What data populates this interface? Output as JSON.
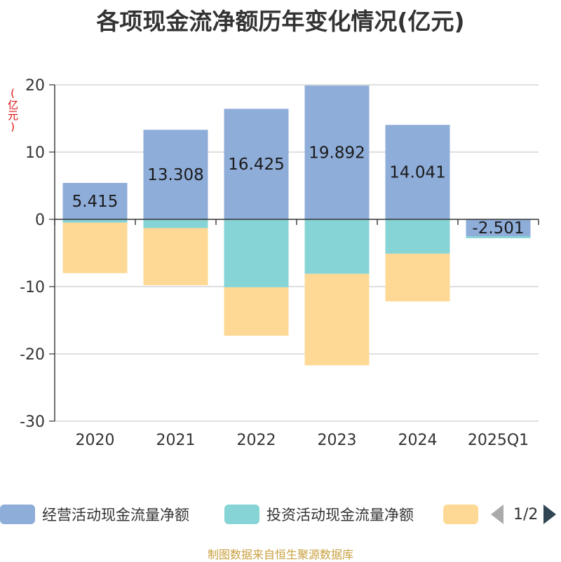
{
  "chart_data": {
    "type": "bar",
    "stacked": true,
    "title": "各项现金流净额历年变化情况(亿元)",
    "ylabel": "(亿元)",
    "ylim": [
      -30,
      20
    ],
    "yticks": [
      20,
      10,
      0,
      -10,
      -20,
      -30
    ],
    "categories": [
      "2020",
      "2021",
      "2022",
      "2023",
      "2024",
      "2025Q1"
    ],
    "series": [
      {
        "name": "经营活动现金流量净额",
        "color": "#8fadd9",
        "values": [
          5.415,
          13.308,
          16.425,
          19.892,
          14.041,
          -2.501
        ],
        "labels": [
          "5.415",
          "13.308",
          "16.425",
          "19.892",
          "14.041",
          "-2.501"
        ]
      },
      {
        "name": "投资活动现金流量净额",
        "color": "#87d4d6",
        "values": [
          -0.5,
          -1.3,
          -10.1,
          -8.1,
          -5.1,
          -0.3
        ]
      },
      {
        "name": "",
        "color": "#fed996",
        "values": [
          -7.5,
          -8.5,
          -7.2,
          -13.6,
          -7.1,
          0
        ]
      }
    ],
    "legend": {
      "page": "1/2"
    },
    "source": "制图数据来自恒生聚源数据库"
  }
}
